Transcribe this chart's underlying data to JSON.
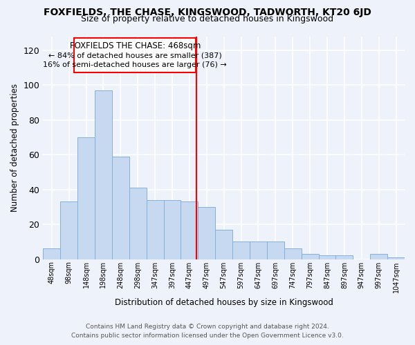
{
  "title": "FOXFIELDS, THE CHASE, KINGSWOOD, TADWORTH, KT20 6JD",
  "subtitle": "Size of property relative to detached houses in Kingswood",
  "xlabel": "Distribution of detached houses by size in Kingswood",
  "ylabel": "Number of detached properties",
  "bar_labels": [
    "48sqm",
    "98sqm",
    "148sqm",
    "198sqm",
    "248sqm",
    "298sqm",
    "347sqm",
    "397sqm",
    "447sqm",
    "497sqm",
    "547sqm",
    "597sqm",
    "647sqm",
    "697sqm",
    "747sqm",
    "797sqm",
    "847sqm",
    "897sqm",
    "947sqm",
    "997sqm",
    "1047sqm"
  ],
  "bar_values": [
    6,
    33,
    70,
    97,
    59,
    41,
    34,
    34,
    33,
    30,
    17,
    10,
    10,
    10,
    6,
    3,
    2,
    2,
    0,
    3,
    1
  ],
  "bar_color": "#c6d9f0",
  "bar_edge_color": "#85b0d8",
  "vline_color": "red",
  "annotation_title": "FOXFIELDS THE CHASE: 468sqm",
  "annotation_line1": "← 84% of detached houses are smaller (387)",
  "annotation_line2": "16% of semi-detached houses are larger (76) →",
  "box_color": "white",
  "box_edge_color": "red",
  "ylim": [
    0,
    128
  ],
  "yticks": [
    0,
    20,
    40,
    60,
    80,
    100,
    120
  ],
  "footer_line1": "Contains HM Land Registry data © Crown copyright and database right 2024.",
  "footer_line2": "Contains public sector information licensed under the Open Government Licence v3.0.",
  "bg_color": "#eef2fa"
}
